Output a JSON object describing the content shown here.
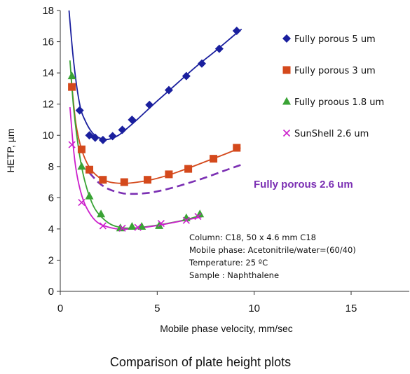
{
  "chart_data": {
    "type": "scatter",
    "xlabel": "Mobile phase velocity, mm/sec",
    "ylabel": "HETP, µm",
    "xlim": [
      0,
      18
    ],
    "ylim": [
      0,
      18
    ],
    "x_ticks": [
      "0",
      "5",
      "10",
      "15"
    ],
    "y_ticks": [
      "0",
      "2",
      "4",
      "6",
      "8",
      "10",
      "12",
      "14",
      "16",
      "18"
    ],
    "legend_position": "top-right",
    "caption": "Comparison of plate height plots",
    "series": [
      {
        "name": "Fully porous 5 um",
        "marker": "diamond",
        "color": "#1a1f9e",
        "points": [
          [
            1.0,
            11.6
          ],
          [
            1.5,
            10.0
          ],
          [
            1.8,
            9.85
          ],
          [
            2.2,
            9.7
          ],
          [
            2.7,
            9.95
          ],
          [
            3.2,
            10.35
          ],
          [
            3.7,
            11.0
          ],
          [
            4.6,
            11.95
          ],
          [
            5.6,
            12.9
          ],
          [
            6.5,
            13.8
          ],
          [
            7.3,
            14.6
          ],
          [
            8.2,
            15.55
          ],
          [
            9.1,
            16.7
          ]
        ],
        "curve": [
          [
            0.45,
            18.0
          ],
          [
            0.7,
            14.6
          ],
          [
            1.0,
            12.0
          ],
          [
            1.3,
            10.9
          ],
          [
            1.7,
            10.1
          ],
          [
            2.1,
            9.8
          ],
          [
            2.5,
            9.75
          ],
          [
            3.0,
            10.0
          ],
          [
            3.5,
            10.5
          ],
          [
            4.0,
            11.05
          ],
          [
            5.0,
            12.2
          ],
          [
            6.0,
            13.3
          ],
          [
            7.0,
            14.4
          ],
          [
            8.0,
            15.4
          ],
          [
            9.0,
            16.45
          ],
          [
            9.35,
            16.8
          ]
        ]
      },
      {
        "name": "Fully porous 3 um",
        "marker": "square",
        "color": "#d4491c",
        "points": [
          [
            0.6,
            13.1
          ],
          [
            1.1,
            9.1
          ],
          [
            1.5,
            7.8
          ],
          [
            2.2,
            7.15
          ],
          [
            3.3,
            7.0
          ],
          [
            4.5,
            7.15
          ],
          [
            5.6,
            7.5
          ],
          [
            6.6,
            7.85
          ],
          [
            7.9,
            8.5
          ],
          [
            9.1,
            9.2
          ]
        ],
        "curve": [
          [
            0.55,
            13.8
          ],
          [
            0.8,
            10.8
          ],
          [
            1.1,
            9.1
          ],
          [
            1.5,
            7.95
          ],
          [
            2.0,
            7.3
          ],
          [
            2.5,
            7.02
          ],
          [
            3.0,
            6.93
          ],
          [
            3.5,
            6.93
          ],
          [
            4.5,
            7.1
          ],
          [
            5.5,
            7.42
          ],
          [
            6.5,
            7.85
          ],
          [
            7.5,
            8.32
          ],
          [
            8.5,
            8.8
          ],
          [
            9.3,
            9.2
          ]
        ]
      },
      {
        "name": "Fully proous 1.8 um",
        "marker": "triangle",
        "color": "#3aa335",
        "points": [
          [
            0.6,
            13.8
          ],
          [
            1.1,
            8.0
          ],
          [
            1.5,
            6.1
          ],
          [
            2.1,
            4.95
          ],
          [
            3.1,
            4.05
          ],
          [
            3.7,
            4.15
          ],
          [
            4.2,
            4.15
          ],
          [
            5.1,
            4.2
          ],
          [
            6.5,
            4.7
          ],
          [
            7.2,
            4.95
          ]
        ],
        "curve": [
          [
            0.5,
            14.8
          ],
          [
            0.7,
            11.6
          ],
          [
            1.0,
            8.7
          ],
          [
            1.3,
            6.9
          ],
          [
            1.7,
            5.5
          ],
          [
            2.1,
            4.8
          ],
          [
            2.6,
            4.3
          ],
          [
            3.1,
            4.1
          ],
          [
            3.7,
            4.05
          ],
          [
            4.5,
            4.15
          ],
          [
            5.5,
            4.35
          ],
          [
            6.5,
            4.6
          ],
          [
            7.3,
            4.9
          ]
        ]
      },
      {
        "name": "SunShell 2.6 um",
        "marker": "x",
        "color": "#cc1fcc",
        "points": [
          [
            0.6,
            9.4
          ],
          [
            1.1,
            5.7
          ],
          [
            2.2,
            4.2
          ],
          [
            3.2,
            4.05
          ],
          [
            4.0,
            4.1
          ],
          [
            5.2,
            4.35
          ],
          [
            6.5,
            4.55
          ],
          [
            7.1,
            4.8
          ]
        ],
        "curve": [
          [
            0.5,
            11.8
          ],
          [
            0.7,
            8.9
          ],
          [
            0.9,
            7.2
          ],
          [
            1.2,
            5.8
          ],
          [
            1.6,
            4.85
          ],
          [
            2.0,
            4.35
          ],
          [
            2.6,
            4.08
          ],
          [
            3.2,
            3.98
          ],
          [
            4.0,
            4.05
          ],
          [
            5.0,
            4.22
          ],
          [
            6.0,
            4.45
          ],
          [
            7.0,
            4.7
          ],
          [
            7.3,
            4.78
          ]
        ]
      },
      {
        "name": "Fully porous 2.6 um",
        "line_style": "dashed",
        "color": "#7b2fb3",
        "curve": [
          [
            1.5,
            7.6
          ],
          [
            2.0,
            6.95
          ],
          [
            2.5,
            6.55
          ],
          [
            3.0,
            6.35
          ],
          [
            3.5,
            6.25
          ],
          [
            4.5,
            6.3
          ],
          [
            5.5,
            6.55
          ],
          [
            6.5,
            6.9
          ],
          [
            7.5,
            7.3
          ],
          [
            8.5,
            7.75
          ],
          [
            9.3,
            8.1
          ]
        ]
      }
    ],
    "annotations": [
      "Column: C18, 50 x 4.6 mm C18",
      "Mobile phase: Acetonitrile/water=(60/40)",
      "Temperature: 25 ºC",
      "Sample : Naphthalene"
    ],
    "curve_label": "Fully porous 2.6 um"
  }
}
